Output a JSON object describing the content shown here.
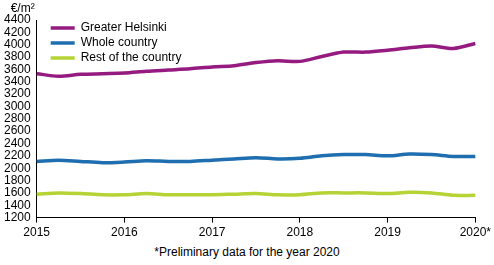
{
  "chart_data": {
    "type": "line",
    "y_label": "€/m²",
    "footnote": "*Preliminary data for the year 2020",
    "categories": [
      "2015",
      null,
      null,
      null,
      "2016",
      null,
      null,
      null,
      "2017",
      null,
      null,
      null,
      "2018",
      null,
      null,
      null,
      "2019",
      null,
      null,
      null,
      "2020*"
    ],
    "series": [
      {
        "name": "Greater Helsinki",
        "color": "#951b81",
        "values": [
          3530,
          3490,
          3520,
          3530,
          3540,
          3570,
          3590,
          3610,
          3640,
          3660,
          3710,
          3740,
          3730,
          3810,
          3880,
          3880,
          3910,
          3950,
          3980,
          3940,
          4020
        ]
      },
      {
        "name": "Whole country",
        "color": "#1f6eb0",
        "values": [
          2110,
          2130,
          2110,
          2090,
          2100,
          2120,
          2110,
          2110,
          2130,
          2150,
          2170,
          2150,
          2160,
          2200,
          2220,
          2220,
          2200,
          2230,
          2220,
          2190,
          2190
        ]
      },
      {
        "name": "Rest of the country",
        "color": "#b6d335",
        "values": [
          1580,
          1600,
          1590,
          1570,
          1570,
          1590,
          1570,
          1570,
          1570,
          1580,
          1590,
          1570,
          1570,
          1600,
          1600,
          1600,
          1590,
          1610,
          1600,
          1560,
          1560
        ]
      }
    ],
    "ylim": [
      1200,
      4400
    ],
    "yticks": [
      1200,
      1400,
      1600,
      1800,
      2000,
      2200,
      2400,
      2600,
      2800,
      3000,
      3200,
      3400,
      3600,
      3800,
      4000,
      4200,
      4400
    ],
    "grid": false,
    "legend": "upper left"
  }
}
